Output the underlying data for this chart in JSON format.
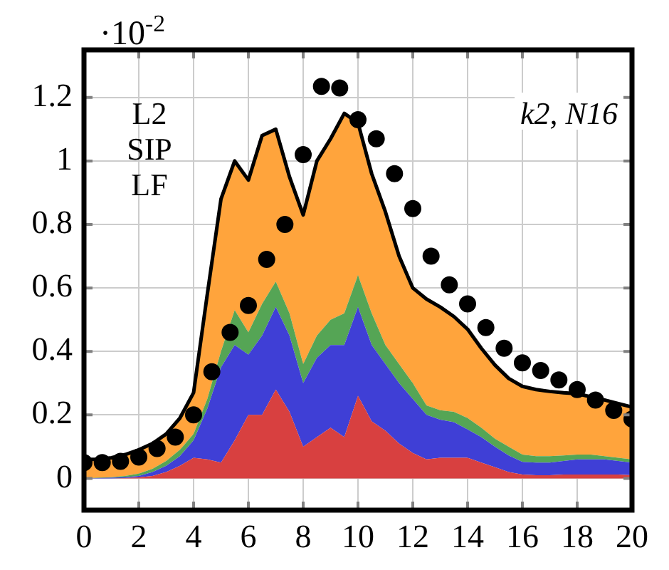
{
  "chart_data": {
    "type": "area",
    "stacked": true,
    "ylabel": "·10$^{-2}$",
    "annotations": [
      "L2\nSIP\nLF",
      "k2, N16"
    ],
    "x": [
      0,
      0.5,
      1,
      1.5,
      2,
      2.5,
      3,
      3.5,
      4,
      4.5,
      5,
      5.5,
      6,
      6.5,
      7,
      7.5,
      8,
      8.5,
      9,
      9.5,
      10,
      10.5,
      11,
      11.5,
      12,
      12.5,
      13,
      13.5,
      14,
      14.5,
      15,
      15.5,
      16,
      16.5,
      17,
      17.5,
      18,
      18.5,
      19,
      19.5,
      20
    ],
    "xlim": [
      0,
      20
    ],
    "xticks": [
      0,
      2,
      4,
      6,
      8,
      10,
      12,
      14,
      16,
      18,
      20
    ],
    "ylim": [
      -0.1,
      1.35
    ],
    "yticks": [
      0,
      0.2,
      0.4,
      0.6,
      0.8,
      1,
      1.2
    ],
    "grid": true,
    "series": [
      {
        "color": "#d84040",
        "values": [
          0,
          0,
          0,
          0.001,
          0.003,
          0.008,
          0.02,
          0.04,
          0.065,
          0.06,
          0.05,
          0.12,
          0.2,
          0.2,
          0.28,
          0.21,
          0.1,
          0.13,
          0.16,
          0.13,
          0.26,
          0.18,
          0.15,
          0.11,
          0.08,
          0.06,
          0.065,
          0.065,
          0.065,
          0.05,
          0.035,
          0.02,
          0.012,
          0.01,
          0.01,
          0.012,
          0.012,
          0.012,
          0.012,
          0.012,
          0.01
        ]
      },
      {
        "color": "#3f3fd6",
        "values": [
          0,
          0.001,
          0.002,
          0.003,
          0.005,
          0.012,
          0.02,
          0.03,
          0.055,
          0.16,
          0.3,
          0.3,
          0.19,
          0.25,
          0.26,
          0.24,
          0.2,
          0.25,
          0.26,
          0.29,
          0.28,
          0.24,
          0.21,
          0.19,
          0.17,
          0.14,
          0.12,
          0.112,
          0.089,
          0.08,
          0.065,
          0.052,
          0.04,
          0.04,
          0.04,
          0.043,
          0.048,
          0.048,
          0.048,
          0.043,
          0.04
        ]
      },
      {
        "color": "#55a555",
        "values": [
          0,
          0.001,
          0.002,
          0.004,
          0.007,
          0.01,
          0.015,
          0.02,
          0.02,
          0.03,
          0.05,
          0.11,
          0.07,
          0.1,
          0.08,
          0.07,
          0.06,
          0.07,
          0.08,
          0.1,
          0.1,
          0.1,
          0.06,
          0.06,
          0.05,
          0.03,
          0.03,
          0.033,
          0.036,
          0.03,
          0.025,
          0.028,
          0.023,
          0.02,
          0.02,
          0.017,
          0.015,
          0.015,
          0.01,
          0.01,
          0.01
        ]
      },
      {
        "color": "#ffa43c",
        "values": [
          0.06,
          0.058,
          0.061,
          0.067,
          0.075,
          0.08,
          0.085,
          0.1,
          0.13,
          0.33,
          0.48,
          0.47,
          0.48,
          0.53,
          0.48,
          0.43,
          0.47,
          0.55,
          0.57,
          0.63,
          0.48,
          0.44,
          0.42,
          0.34,
          0.3,
          0.335,
          0.325,
          0.3,
          0.28,
          0.25,
          0.232,
          0.215,
          0.215,
          0.21,
          0.204,
          0.198,
          0.192,
          0.182,
          0.177,
          0.171,
          0.165
        ]
      },
      {
        "type": "scatter",
        "marker": "circle",
        "color": "#000000",
        "x": [
          0,
          0.667,
          1.333,
          2,
          2.667,
          3.333,
          4,
          4.667,
          5.333,
          6,
          6.667,
          7.333,
          8,
          8.667,
          9.333,
          10,
          10.667,
          11.333,
          12,
          12.667,
          13.333,
          14,
          14.667,
          15.333,
          16,
          16.667,
          17.333,
          18,
          18.667,
          19.333,
          20
        ],
        "values": [
          0.05,
          0.05,
          0.054,
          0.067,
          0.094,
          0.13,
          0.2,
          0.336,
          0.46,
          0.545,
          0.69,
          0.8,
          1.02,
          1.235,
          1.23,
          1.13,
          1.07,
          0.96,
          0.85,
          0.7,
          0.61,
          0.55,
          0.475,
          0.41,
          0.364,
          0.34,
          0.31,
          0.28,
          0.247,
          0.214,
          0.187
        ]
      }
    ]
  }
}
